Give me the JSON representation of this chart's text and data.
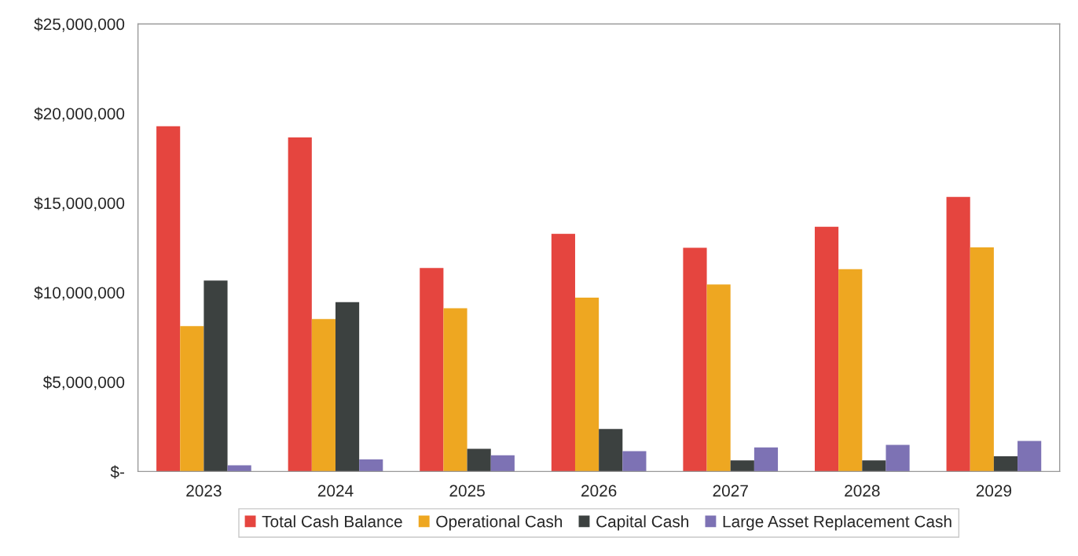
{
  "chart_data": {
    "type": "bar",
    "categories": [
      "2023",
      "2024",
      "2025",
      "2026",
      "2027",
      "2028",
      "2029"
    ],
    "series": [
      {
        "name": "Total Cash Balance",
        "color": "#e5453f",
        "values": [
          19280000,
          18660000,
          11370000,
          13280000,
          12500000,
          13670000,
          15340000
        ]
      },
      {
        "name": "Operational Cash",
        "color": "#eea721",
        "values": [
          8120000,
          8520000,
          9120000,
          9710000,
          10450000,
          11300000,
          12520000
        ]
      },
      {
        "name": "Capital Cash",
        "color": "#3c4140",
        "values": [
          10670000,
          9460000,
          1270000,
          2370000,
          620000,
          620000,
          850000
        ]
      },
      {
        "name": "Large Asset Replacement Cash",
        "color": "#7d72b4",
        "values": [
          350000,
          670000,
          900000,
          1130000,
          1340000,
          1490000,
          1710000
        ]
      }
    ],
    "ylim": [
      0,
      25000000
    ],
    "yticks": [
      {
        "value": 0,
        "label": "$-"
      },
      {
        "value": 5000000,
        "label": "$5,000,000"
      },
      {
        "value": 10000000,
        "label": "$10,000,000"
      },
      {
        "value": 15000000,
        "label": "$15,000,000"
      },
      {
        "value": 20000000,
        "label": "$20,000,000"
      },
      {
        "value": 25000000,
        "label": "$25,000,000"
      }
    ],
    "grid": false,
    "legend": "bottom"
  }
}
